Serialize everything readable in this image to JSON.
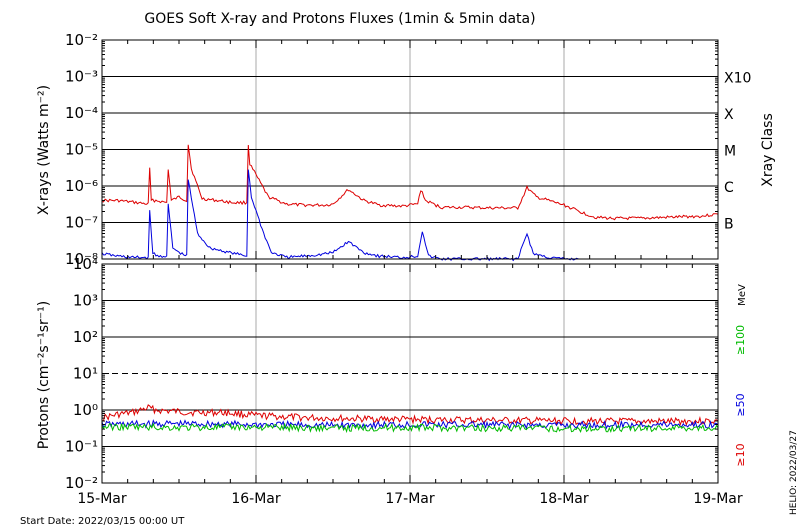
{
  "chart_data": [
    {
      "type": "line",
      "title": "GOES Soft X-ray and Protons Fluxes   (1min & 5min data)",
      "ylabel": "X-rays (Watts m⁻²)",
      "yscale": "log",
      "ylim": [
        1e-08,
        0.01
      ],
      "ytick_labels": [
        "10⁻²",
        "10⁻³",
        "10⁻⁴",
        "10⁻⁵",
        "10⁻⁶",
        "10⁻⁷",
        "10⁻⁸"
      ],
      "right_axis_title": "Xray Class",
      "class_labels": [
        "X10",
        "X",
        "M",
        "C",
        "B"
      ],
      "grid": true,
      "series": [
        {
          "color": "#dd0000",
          "x": [
            15.0,
            15.1,
            15.2,
            15.3,
            15.31,
            15.32,
            15.35,
            15.42,
            15.43,
            15.45,
            15.5,
            15.55,
            15.56,
            15.58,
            15.65,
            15.75,
            15.85,
            15.94,
            15.95,
            15.96,
            16.0,
            16.08,
            16.2,
            16.3,
            16.45,
            16.5,
            16.6,
            16.7,
            16.8,
            16.95,
            17.05,
            17.07,
            17.1,
            17.2,
            17.35,
            17.5,
            17.7,
            17.76,
            17.82,
            17.9,
            18.0,
            18.1,
            18.2,
            18.3,
            18.5,
            18.7,
            18.9,
            19.0
          ],
          "y": [
            4e-07,
            4e-07,
            3.6e-07,
            3.2e-07,
            3e-06,
            4e-07,
            4e-07,
            3.5e-07,
            3e-06,
            4e-07,
            5e-07,
            4e-07,
            1.4e-05,
            3e-06,
            4.5e-07,
            4e-07,
            3.5e-07,
            3.5e-07,
            1.4e-05,
            4e-06,
            2e-06,
            5e-07,
            3.2e-07,
            3e-07,
            3e-07,
            3.2e-07,
            8e-07,
            4e-07,
            3e-07,
            2.8e-07,
            3.2e-07,
            8e-07,
            4e-07,
            2.6e-07,
            2.6e-07,
            2.5e-07,
            2.5e-07,
            9e-07,
            5e-07,
            4e-07,
            3e-07,
            2e-07,
            1.4e-07,
            1.3e-07,
            1.3e-07,
            1.4e-07,
            1.5e-07,
            1.7e-07
          ]
        },
        {
          "color": "#0000dd",
          "x": [
            15.0,
            15.1,
            15.2,
            15.3,
            15.31,
            15.33,
            15.35,
            15.42,
            15.43,
            15.46,
            15.5,
            15.55,
            15.56,
            15.62,
            15.7,
            15.8,
            15.9,
            15.94,
            15.95,
            15.97,
            16.05,
            16.1,
            16.2,
            16.4,
            16.5,
            16.6,
            16.7,
            16.8,
            16.95,
            17.05,
            17.08,
            17.12,
            17.2,
            17.4,
            17.6,
            17.7,
            17.76,
            17.8,
            17.9,
            18.0,
            18.1
          ],
          "y": [
            1.4e-08,
            1.2e-08,
            1.1e-08,
            1.1e-08,
            2e-07,
            1.5e-08,
            1.2e-08,
            1.2e-08,
            3e-07,
            2e-08,
            1.5e-08,
            1.2e-08,
            1.5e-06,
            5e-08,
            2e-08,
            1.6e-08,
            1.3e-08,
            1.2e-08,
            3e-06,
            5e-07,
            5e-08,
            1.5e-08,
            1.1e-08,
            1.3e-08,
            1.5e-08,
            3e-08,
            1.5e-08,
            1.2e-08,
            1.1e-08,
            1.2e-08,
            6e-08,
            1.2e-08,
            1e-08,
            1e-08,
            1e-08,
            1e-08,
            5e-08,
            1.4e-08,
            1.1e-08,
            1e-08,
            1e-08
          ]
        }
      ]
    },
    {
      "type": "line",
      "ylabel": "Protons (cm⁻²s⁻¹sr⁻¹)",
      "yscale": "log",
      "ylim": [
        0.01,
        10000
      ],
      "ytick_labels": [
        "10⁴",
        "10³",
        "10²",
        "10¹",
        "10⁰",
        "10⁻¹",
        "10⁻²"
      ],
      "threshold": 10,
      "xlabel": "Start Date: 2022/03/15 00:00 UT",
      "x_tick_labels": [
        "15-Mar",
        "16-Mar",
        "17-Mar",
        "18-Mar",
        "19-Mar"
      ],
      "energy_unit": "MeV",
      "energy_labels": [
        {
          "label": "≥100",
          "color": "#00bb00"
        },
        {
          "label": "≥50",
          "color": "#0000dd"
        },
        {
          "label": "≥10",
          "color": "#dd0000"
        }
      ],
      "series": [
        {
          "name": "≥10",
          "color": "#dd0000",
          "x": [
            15.0,
            15.1,
            15.2,
            15.3,
            15.35,
            15.4,
            15.5,
            15.6,
            15.8,
            16.0,
            16.3,
            16.6,
            17.0,
            17.5,
            18.0,
            18.5,
            19.0
          ],
          "y": [
            0.6,
            0.75,
            0.85,
            1.15,
            1.0,
            0.95,
            0.9,
            0.85,
            0.85,
            0.7,
            0.62,
            0.58,
            0.55,
            0.52,
            0.5,
            0.48,
            0.5
          ]
        },
        {
          "name": "≥50",
          "color": "#0000dd",
          "x": [
            15.0,
            15.5,
            16.0,
            16.5,
            17.0,
            17.5,
            18.0,
            18.5,
            19.0
          ],
          "y": [
            0.4,
            0.42,
            0.4,
            0.38,
            0.4,
            0.39,
            0.38,
            0.4,
            0.39
          ]
        },
        {
          "name": "≥100",
          "color": "#00bb00",
          "x": [
            15.0,
            15.5,
            16.0,
            16.5,
            17.0,
            17.5,
            18.0,
            18.5,
            19.0
          ],
          "y": [
            0.35,
            0.33,
            0.34,
            0.32,
            0.33,
            0.32,
            0.31,
            0.32,
            0.33
          ]
        }
      ]
    }
  ],
  "stamp": "HELIO: 2022/03/27"
}
